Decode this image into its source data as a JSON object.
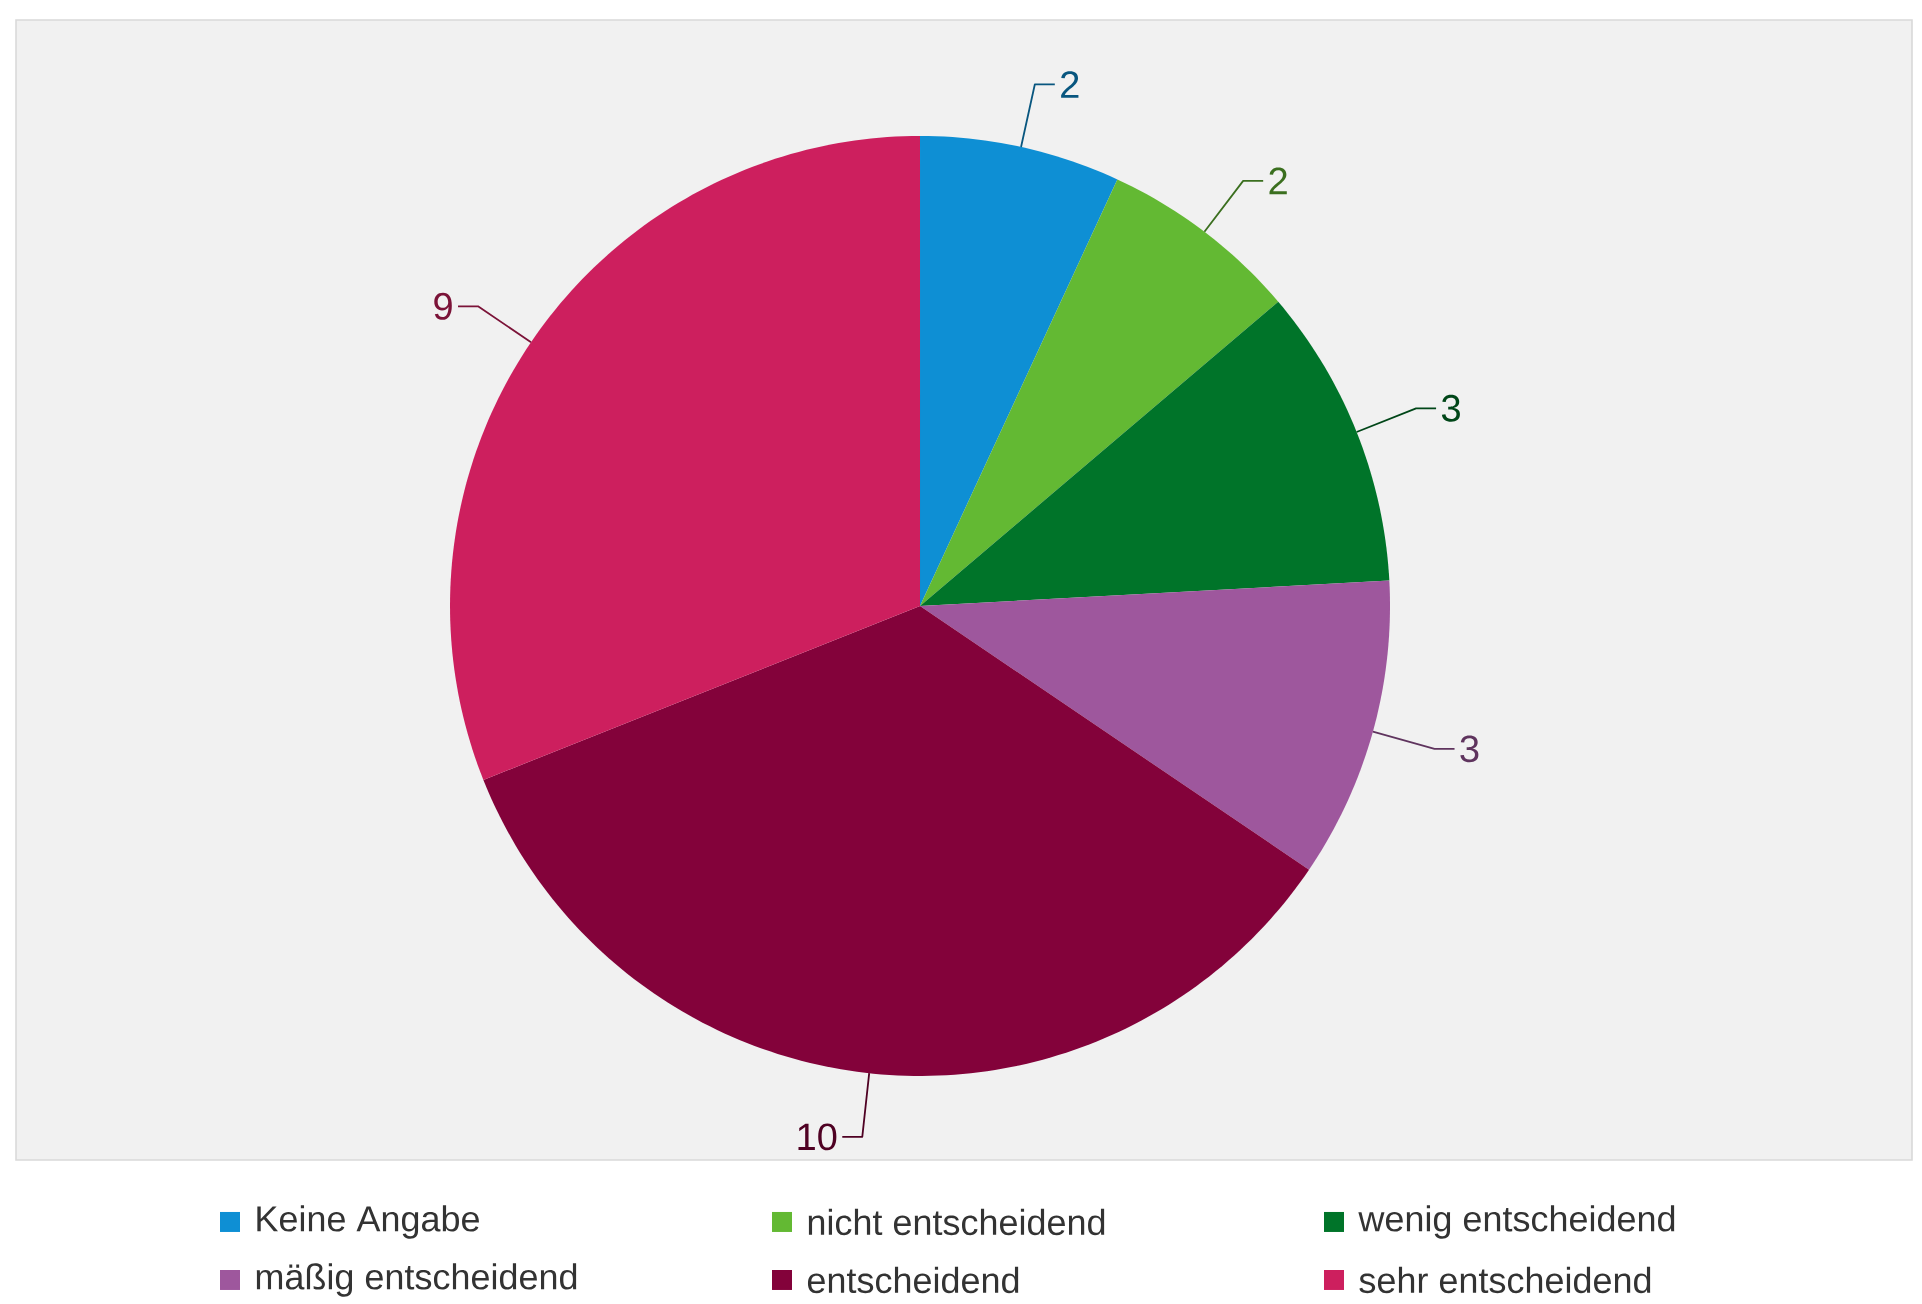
{
  "chart_data": {
    "type": "pie",
    "categories": [
      "Keine Angabe",
      "nicht entscheidend",
      "wenig entscheidend",
      "mäßig entscheidend",
      "entscheidend",
      "sehr entscheidend"
    ],
    "values": [
      2,
      2,
      3,
      3,
      10,
      9
    ],
    "colors": [
      "#0e8fd4",
      "#63b933",
      "#007429",
      "#9e579d",
      "#83023a",
      "#cd1f5e"
    ],
    "data_labels": true,
    "legend": "bottom"
  }
}
